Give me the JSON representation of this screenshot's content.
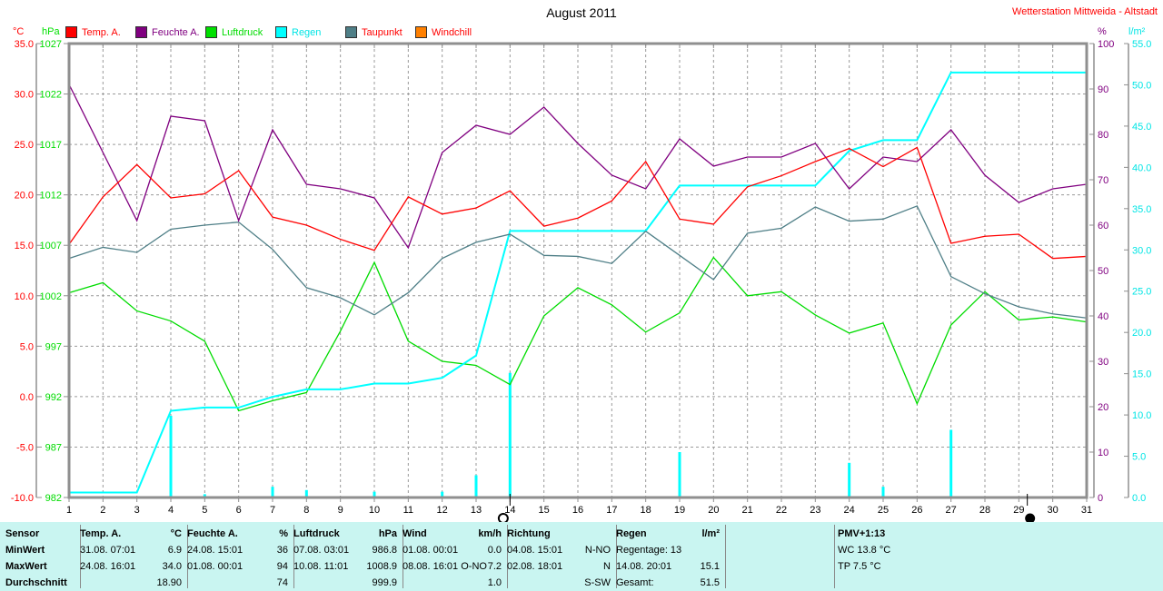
{
  "title": "August 2011",
  "station": "Wetterstation Mittweida - Altstadt",
  "axis_units": {
    "temp": "°C",
    "pressure": "hPa",
    "humidity": "%",
    "rain": "l/m²"
  },
  "legend": [
    {
      "label": "Temp. A.",
      "swatch": "#ff0000",
      "text_color": "#ff0000"
    },
    {
      "label": "Feuchte A.",
      "swatch": "#800080",
      "text_color": "#800080"
    },
    {
      "label": "Luftdruck",
      "swatch": "#00e000",
      "text_color": "#00dc00"
    },
    {
      "label": "Regen",
      "swatch": "#00ffff",
      "text_color": "#00e5e5"
    },
    {
      "label": "Taupunkt",
      "swatch": "#4f7f87",
      "text_color": "#ff0000"
    },
    {
      "label": "Windchill",
      "swatch": "#ff8000",
      "text_color": "#ff0000"
    }
  ],
  "chart_data": {
    "type": "line",
    "x_days": {
      "min": 1,
      "max": 31
    },
    "axes": {
      "tempC": {
        "min": -10,
        "max": 35,
        "step": 5,
        "decimals": 1,
        "color": "#ff0000",
        "label": "°C"
      },
      "hpa": {
        "min": 982,
        "max": 1027,
        "step": 5,
        "decimals": 0,
        "color": "#00dc00",
        "label": "hPa"
      },
      "pct": {
        "min": 0,
        "max": 100,
        "step": 10,
        "decimals": 0,
        "color": "#800080",
        "label": "%"
      },
      "lpm2": {
        "min": 0,
        "max": 55,
        "step": 5,
        "decimals": 1,
        "color": "#00e5e5",
        "label": "l/m²"
      }
    },
    "series": [
      {
        "name": "Luftdruck",
        "axis": "hpa",
        "color": "#00dc00",
        "width": 1.3,
        "values": [
          1002.3,
          1003.3,
          1000.5,
          999.5,
          997.5,
          990.6,
          991.6,
          992.4,
          998.5,
          1005.3,
          997.5,
          995.5,
          995.1,
          993.2,
          1000.0,
          1002.8,
          1001.1,
          998.4,
          1000.3,
          1005.8,
          1002.0,
          1002.4,
          1000.1,
          998.3,
          999.3,
          991.3,
          999.1,
          1002.4,
          999.6,
          999.9,
          999.4
        ]
      },
      {
        "name": "Regen (Summe)",
        "axis": "lpm2",
        "color": "#00ffff",
        "width": 2,
        "values": [
          0.6,
          0.6,
          0.6,
          10.5,
          10.9,
          10.9,
          12.2,
          13.1,
          13.1,
          13.8,
          13.8,
          14.5,
          17.2,
          32.3,
          32.3,
          32.3,
          32.3,
          32.3,
          37.8,
          37.8,
          37.8,
          37.8,
          37.8,
          42.0,
          43.3,
          43.3,
          51.5,
          51.5,
          51.5,
          51.5,
          51.5
        ]
      },
      {
        "name": "Taupunkt",
        "axis": "tempC",
        "color": "#4f7f87",
        "width": 1.3,
        "values": [
          13.7,
          14.8,
          14.3,
          16.6,
          17.0,
          17.3,
          14.6,
          10.8,
          9.8,
          8.1,
          10.3,
          13.7,
          15.3,
          16.1,
          14.0,
          13.9,
          13.2,
          16.4,
          14.0,
          11.6,
          16.2,
          16.7,
          18.8,
          17.4,
          17.6,
          18.9,
          11.9,
          10.2,
          8.9,
          8.2,
          7.8
        ]
      },
      {
        "name": "Feuchte A.",
        "axis": "pct",
        "color": "#800080",
        "width": 1.3,
        "values": [
          91,
          76,
          61,
          84,
          83,
          61,
          81,
          69,
          68,
          66,
          55,
          76,
          82,
          80,
          86,
          78,
          71,
          68,
          79,
          73,
          75,
          75,
          78,
          68,
          75,
          74,
          81,
          71,
          65,
          68,
          69
        ]
      },
      {
        "name": "Temp. A.",
        "axis": "tempC",
        "color": "#ff0000",
        "width": 1.3,
        "values": [
          15.1,
          19.8,
          23.0,
          19.7,
          20.1,
          22.4,
          17.8,
          17.0,
          15.6,
          14.5,
          19.8,
          18.1,
          18.7,
          20.4,
          16.9,
          17.7,
          19.4,
          23.3,
          17.6,
          17.1,
          20.8,
          21.9,
          23.3,
          24.6,
          22.8,
          24.7,
          15.2,
          15.9,
          16.1,
          13.7,
          13.9
        ]
      }
    ],
    "rain_bars": {
      "axis": "lpm2",
      "color": "#00ffff",
      "values": [
        0.6,
        0,
        0,
        9.9,
        0.4,
        0,
        1.3,
        0.9,
        0,
        0.7,
        0,
        0.7,
        2.7,
        15.1,
        0,
        0,
        0,
        0,
        5.5,
        0,
        0,
        0,
        0,
        4.2,
        1.3,
        0,
        8.2,
        0,
        0,
        0,
        0
      ]
    },
    "moon_markers": {
      "open_circle_day": 13.8,
      "filled_circle_day": 29.25
    },
    "grid": {
      "h_lines_tempC": [
        30,
        25,
        20,
        15,
        10,
        5,
        0,
        -5
      ],
      "v_lines_every_day": true
    }
  },
  "table": {
    "row_labels": [
      "Sensor",
      "MinWert",
      "MaxWert",
      "Durchschnitt"
    ],
    "columns": [
      {
        "name": "Temp. A.",
        "unit": "°C",
        "min_when": "31.08.  07:01",
        "min_val": "6.9",
        "max_when": "24.08.  16:01",
        "max_val": "34.0",
        "avg_label": "",
        "avg_val": "18.90"
      },
      {
        "name": "Feuchte A.",
        "unit": "%",
        "min_when": "24.08.  15:01",
        "min_val": "36",
        "max_when": "01.08.  00:01",
        "max_val": "94",
        "avg_label": "",
        "avg_val": "74"
      },
      {
        "name": "Luftdruck",
        "unit": "hPa",
        "min_when": "07.08.  03:01",
        "min_val": "986.8",
        "max_when": "10.08.  11:01",
        "max_val": "1008.9",
        "avg_label": "",
        "avg_val": "999.9"
      },
      {
        "name": "Wind",
        "unit": "km/h",
        "min_when": "01.08.  00:01",
        "min_val": "0.0",
        "max_when": "08.08.  16:01 O-NO",
        "max_val": "7.2",
        "avg_label": "",
        "avg_val": "1.0"
      },
      {
        "name": "Richtung",
        "unit": "",
        "min_when": "04.08.  15:01",
        "min_val": "N-NO",
        "max_when": "02.08.  18:01",
        "max_val": "N",
        "avg_label": "",
        "avg_val": "S-SW"
      },
      {
        "name": "Regen",
        "unit": "l/m²",
        "min_when": "Regentage: 13",
        "min_val": "",
        "max_when": "14.08.  20:01",
        "max_val": "15.1",
        "avg_label": "Gesamt:",
        "avg_val": "51.5"
      }
    ],
    "pmv": {
      "title": "PMV+1:13",
      "line1": "WC 13.8 °C",
      "line2": "TP 7.5 °C"
    }
  }
}
